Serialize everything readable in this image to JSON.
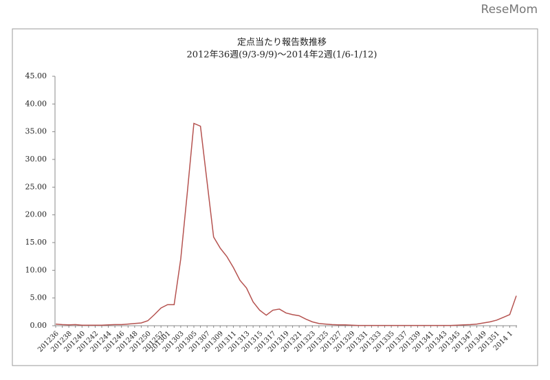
{
  "watermark": "ReseMom",
  "chart_data": {
    "type": "line",
    "title": "定点当たり報告数推移",
    "subtitle": "2012年36週(9/3-9/9)～2014年2週(1/6-1/12)",
    "categories": [
      "201236",
      null,
      "201238",
      null,
      "201240",
      null,
      "201242",
      null,
      "201244",
      null,
      "201246",
      null,
      "201248",
      null,
      "201250",
      null,
      "201252",
      "201301",
      null,
      "201303",
      null,
      "201305",
      null,
      "201307",
      null,
      "201309",
      null,
      "201311",
      null,
      "201313",
      null,
      "201315",
      null,
      "201317",
      null,
      "201319",
      null,
      "201321",
      null,
      "201323",
      null,
      "201325",
      null,
      "201327",
      null,
      "201329",
      null,
      "201331",
      null,
      "201333",
      null,
      "201335",
      null,
      "201337",
      null,
      "201339",
      null,
      "201341",
      null,
      "201343",
      null,
      "201345",
      null,
      "201347",
      null,
      "201349",
      null,
      "201351",
      null,
      "2014 1",
      null
    ],
    "series": [
      {
        "color": "#b5524f",
        "values": [
          0.3,
          0.2,
          0.15,
          0.2,
          0.1,
          0.1,
          0.1,
          0.1,
          0.15,
          0.2,
          0.2,
          0.3,
          0.4,
          0.5,
          0.9,
          2.0,
          3.2,
          3.8,
          3.8,
          12,
          24,
          36.5,
          36.0,
          26,
          16,
          14,
          12.5,
          10.5,
          8.2,
          6.8,
          4.3,
          2.8,
          1.9,
          2.8,
          3.0,
          2.3,
          2.0,
          1.8,
          1.2,
          0.7,
          0.4,
          0.3,
          0.2,
          0.15,
          0.15,
          0.1,
          0.05,
          0.05,
          0.05,
          0.05,
          0.05,
          0.05,
          0.05,
          0.05,
          0.05,
          0.05,
          0.05,
          0.05,
          0.05,
          0.05,
          0.05,
          0.1,
          0.15,
          0.2,
          0.3,
          0.5,
          0.7,
          1.0,
          1.5,
          2.0,
          5.4
        ]
      }
    ],
    "ylim": [
      0,
      45
    ],
    "yticks": [
      {
        "value": 0,
        "label": "0.00"
      },
      {
        "value": 5,
        "label": "5.00"
      },
      {
        "value": 10,
        "label": "10.00"
      },
      {
        "value": 15,
        "label": "15.00"
      },
      {
        "value": 20,
        "label": "20.00"
      },
      {
        "value": 25,
        "label": "25.00"
      },
      {
        "value": 30,
        "label": "30.00"
      },
      {
        "value": 35,
        "label": "35.00"
      },
      {
        "value": 40,
        "label": "40.00"
      },
      {
        "value": 45,
        "label": "45.00"
      }
    ],
    "grid": false
  }
}
